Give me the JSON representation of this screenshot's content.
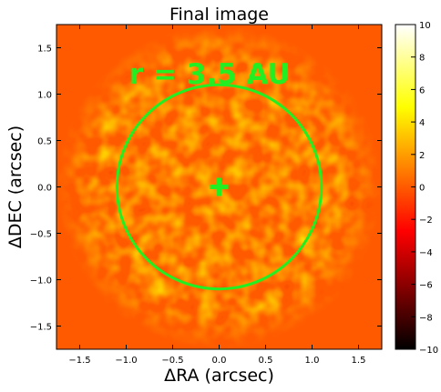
{
  "chart_data": [
    {
      "type": "heatmap",
      "title": "Final image",
      "xlabel": "ΔRA (arcsec)",
      "ylabel": "ΔDEC (arcsec)",
      "xlim": [
        -1.75,
        1.75
      ],
      "ylim": [
        -1.75,
        1.75
      ],
      "xticks": [
        -1.5,
        -1.0,
        -0.5,
        0.0,
        0.5,
        1.0,
        1.5
      ],
      "yticks": [
        -1.5,
        -1.0,
        -0.5,
        0.0,
        0.5,
        1.0,
        1.5
      ],
      "xtick_labels": [
        "−1.5",
        "−1.0",
        "−0.5",
        "0.0",
        "0.5",
        "1.0",
        "1.5"
      ],
      "ytick_labels": [
        "−1.5",
        "−1.0",
        "−0.5",
        "0.0",
        "0.5",
        "1.0",
        "1.5"
      ],
      "colormap": "hot",
      "colorbar": {
        "vmin": -10,
        "vmax": 10,
        "ticks": [
          -10,
          -8,
          -6,
          -4,
          -2,
          0,
          2,
          4,
          6,
          8,
          10
        ],
        "tick_labels": [
          "−10",
          "−8",
          "−6",
          "−4",
          "−2",
          "0",
          "2",
          "4",
          "6",
          "8",
          "10"
        ]
      },
      "background_value": 0,
      "noise_region_radius": 1.75,
      "grid": false,
      "annotations": {
        "circle": {
          "center": [
            0,
            0
          ],
          "radius": 1.1,
          "color": "#22ee22"
        },
        "marker": {
          "type": "plus",
          "position": [
            0,
            0
          ],
          "color": "#22ee22"
        },
        "label": {
          "text": "r = 3.5 AU",
          "position": [
            -0.1,
            1.22
          ],
          "color": "#22ee22"
        }
      }
    }
  ]
}
